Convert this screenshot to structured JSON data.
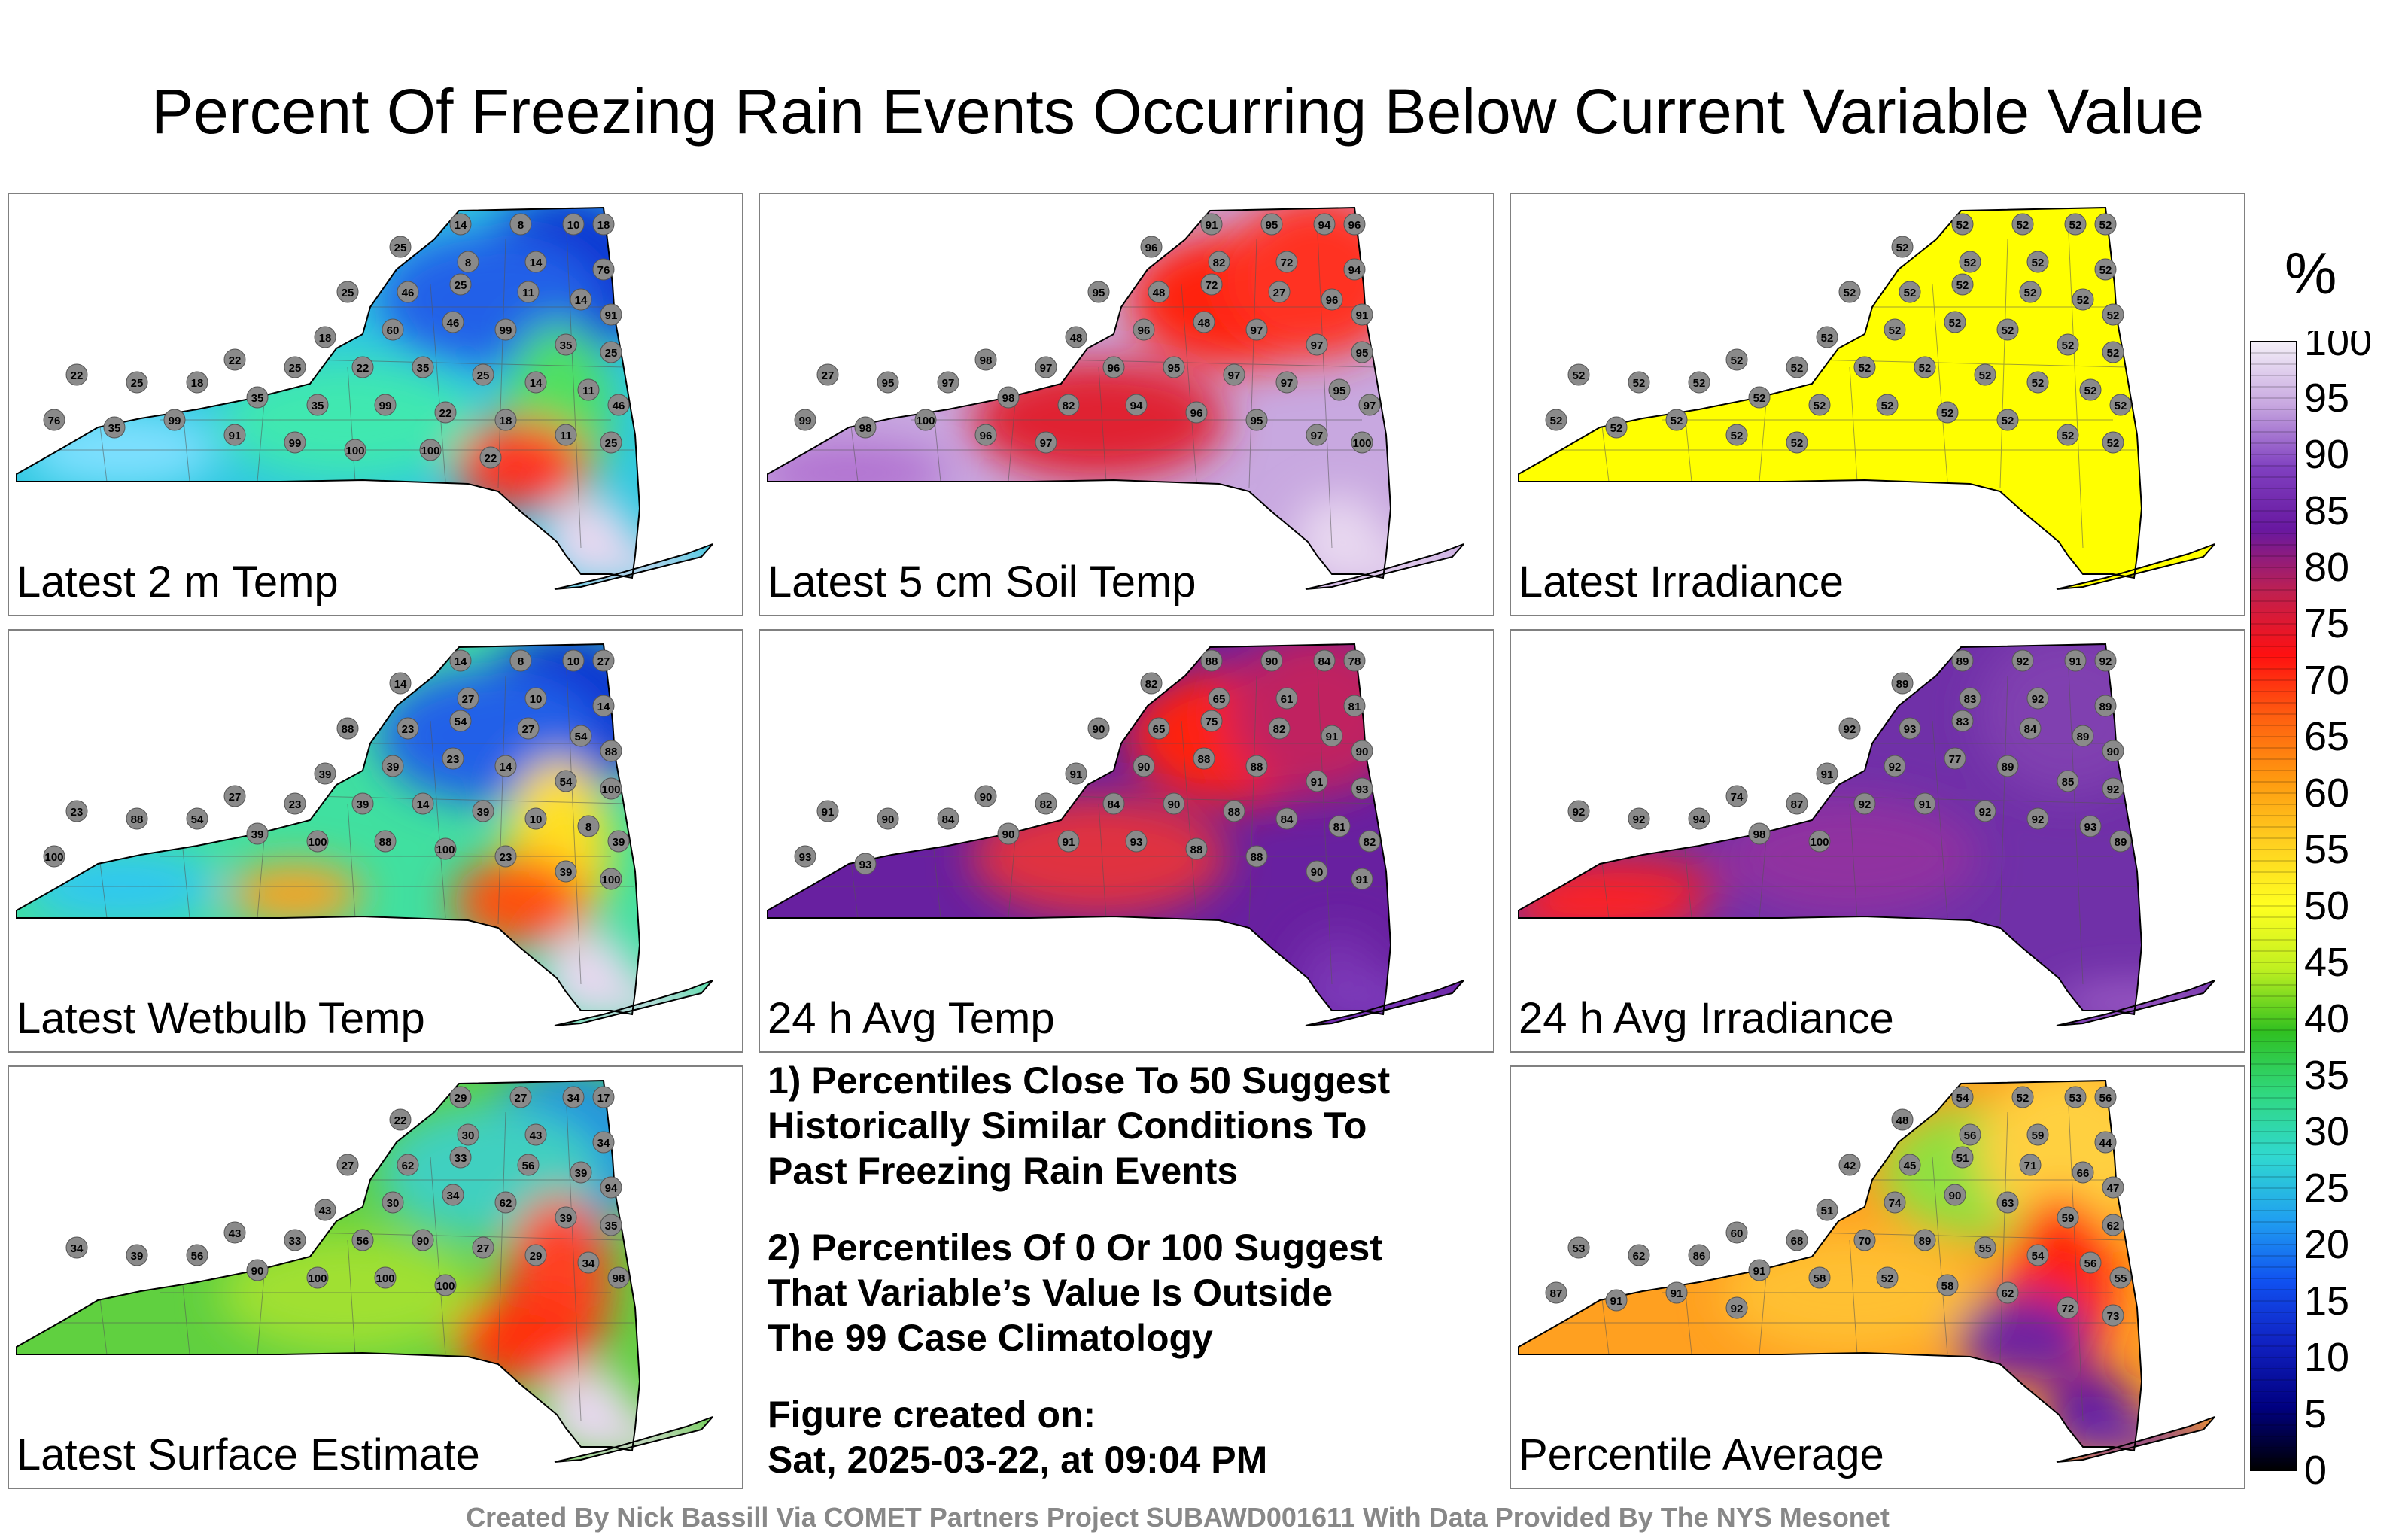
{
  "title": "Percent Of Freezing Rain Events Occurring Below Current Variable Value",
  "panels": [
    {
      "label": "Latest 2 m Temp",
      "base": "#2ec8e0",
      "blobs": [
        {
          "at": "ne",
          "color": "#1030d0"
        },
        {
          "at": "n",
          "color": "#2060e8"
        },
        {
          "at": "ec",
          "color": "#50e060"
        },
        {
          "at": "se",
          "color": "#ff3020"
        },
        {
          "at": "s",
          "color": "#e8d8f0"
        },
        {
          "at": "li",
          "color": "#e8d8f0"
        },
        {
          "at": "w",
          "color": "#80e0ff"
        },
        {
          "at": "c",
          "color": "#40e8b0"
        }
      ],
      "stations": [
        "14",
        "8",
        "10",
        "18",
        "25",
        "8",
        "14",
        "76",
        "25",
        "46",
        "25",
        "11",
        "14",
        "91",
        "18",
        "60",
        "46",
        "99",
        "35",
        "25",
        "22",
        "25",
        "22",
        "35",
        "25",
        "14",
        "11",
        "46",
        "22",
        "25",
        "18",
        "35",
        "35",
        "99",
        "22",
        "18",
        "11",
        "25",
        "76",
        "35",
        "99",
        "91",
        "99",
        "100",
        "100",
        "22"
      ]
    },
    {
      "label": "Latest 5 cm Soil Temp",
      "base": "#c8a8e0",
      "blobs": [
        {
          "at": "n",
          "color": "#ff2010"
        },
        {
          "at": "ne",
          "color": "#ff3020"
        },
        {
          "at": "c",
          "color": "#e02030"
        },
        {
          "at": "sw",
          "color": "#b070d0"
        },
        {
          "at": "s",
          "color": "#e8d8f0"
        },
        {
          "at": "li",
          "color": "#e8d8f0"
        }
      ],
      "stations": [
        "91",
        "95",
        "94",
        "96",
        "96",
        "82",
        "72",
        "94",
        "95",
        "48",
        "72",
        "27",
        "96",
        "91",
        "48",
        "96",
        "48",
        "97",
        "97",
        "95",
        "98",
        "97",
        "96",
        "95",
        "97",
        "97",
        "95",
        "97",
        "27",
        "95",
        "97",
        "98",
        "82",
        "94",
        "96",
        "95",
        "97",
        "100",
        "99",
        "98",
        "100",
        "96",
        "97"
      ]
    },
    {
      "label": "Latest Irradiance",
      "base": "#ffff00",
      "blobs": [],
      "stations": [
        "52",
        "52",
        "52",
        "52",
        "52",
        "52",
        "52",
        "52",
        "52",
        "52",
        "52",
        "52",
        "52",
        "52",
        "52",
        "52",
        "52",
        "52",
        "52",
        "52",
        "52",
        "52",
        "52",
        "52",
        "52",
        "52",
        "52",
        "52",
        "52",
        "52",
        "52",
        "52",
        "52",
        "52",
        "52",
        "52",
        "52",
        "52",
        "52",
        "52",
        "52",
        "52",
        "52"
      ]
    },
    {
      "label": "Latest Wetbulb Temp",
      "base": "#40e0a0",
      "blobs": [
        {
          "at": "ne",
          "color": "#1030d0"
        },
        {
          "at": "n",
          "color": "#2060e8"
        },
        {
          "at": "ec",
          "color": "#ffe020"
        },
        {
          "at": "se",
          "color": "#ff5010"
        },
        {
          "at": "s",
          "color": "#e8d8f0"
        },
        {
          "at": "li",
          "color": "#e8d8f0"
        },
        {
          "at": "w",
          "color": "#30c8f0"
        },
        {
          "at": "sc",
          "color": "#ffa020"
        }
      ],
      "stations": [
        "14",
        "8",
        "10",
        "27",
        "14",
        "27",
        "10",
        "14",
        "88",
        "23",
        "54",
        "27",
        "54",
        "88",
        "39",
        "39",
        "23",
        "14",
        "54",
        "100",
        "27",
        "23",
        "39",
        "14",
        "39",
        "10",
        "8",
        "39",
        "23",
        "88",
        "54",
        "39",
        "100",
        "88",
        "100",
        "23",
        "39",
        "100",
        "100"
      ]
    },
    {
      "label": "24 h Avg Temp",
      "base": "#6820a0",
      "blobs": [
        {
          "at": "n",
          "color": "#ff2010"
        },
        {
          "at": "c",
          "color": "#e03040"
        },
        {
          "at": "ne",
          "color": "#c02060"
        },
        {
          "at": "s",
          "color": "#7830b0"
        },
        {
          "at": "li",
          "color": "#8040c0"
        }
      ],
      "stations": [
        "88",
        "90",
        "84",
        "78",
        "82",
        "65",
        "61",
        "81",
        "90",
        "65",
        "75",
        "82",
        "91",
        "90",
        "91",
        "90",
        "88",
        "88",
        "91",
        "93",
        "90",
        "82",
        "84",
        "90",
        "88",
        "84",
        "81",
        "82",
        "91",
        "90",
        "84",
        "90",
        "91",
        "93",
        "88",
        "88",
        "90",
        "91",
        "93",
        "93"
      ]
    },
    {
      "label": "24 h Avg Irradiance",
      "base": "#7030a8",
      "blobs": [
        {
          "at": "w",
          "color": "#d02040"
        },
        {
          "at": "sw",
          "color": "#ff2020"
        },
        {
          "at": "c",
          "color": "#9030a0"
        },
        {
          "at": "ne",
          "color": "#8040b0"
        },
        {
          "at": "li",
          "color": "#a060c8"
        }
      ],
      "stations": [
        "89",
        "92",
        "91",
        "92",
        "89",
        "83",
        "92",
        "89",
        "92",
        "93",
        "83",
        "84",
        "89",
        "90",
        "91",
        "92",
        "77",
        "89",
        "85",
        "92",
        "74",
        "87",
        "92",
        "91",
        "92",
        "92",
        "93",
        "89",
        "92",
        "92",
        "94",
        "98",
        "100"
      ]
    },
    {
      "label": "Latest Surface Estimate",
      "base": "#60d040",
      "blobs": [
        {
          "at": "ne",
          "color": "#2090e0"
        },
        {
          "at": "n",
          "color": "#40d0c0"
        },
        {
          "at": "ec",
          "color": "#ff4020"
        },
        {
          "at": "se",
          "color": "#ff3010"
        },
        {
          "at": "s",
          "color": "#e8d8f0"
        },
        {
          "at": "li",
          "color": "#e8d8f0"
        },
        {
          "at": "c",
          "color": "#a0e030"
        }
      ],
      "stations": [
        "29",
        "27",
        "34",
        "17",
        "22",
        "30",
        "43",
        "34",
        "27",
        "62",
        "33",
        "56",
        "39",
        "94",
        "43",
        "30",
        "34",
        "62",
        "39",
        "35",
        "43",
        "33",
        "56",
        "90",
        "27",
        "29",
        "34",
        "98",
        "34",
        "39",
        "56",
        "90",
        "100",
        "100",
        "100"
      ]
    },
    {
      "label": "Percentile Average",
      "base": "#ffa020",
      "blobs": [
        {
          "at": "n",
          "color": "#90e040"
        },
        {
          "at": "ne",
          "color": "#ffd040"
        },
        {
          "at": "ec",
          "color": "#ff2010"
        },
        {
          "at": "se",
          "color": "#7020a0"
        },
        {
          "at": "s",
          "color": "#6018a0"
        },
        {
          "at": "li",
          "color": "#7030b0"
        },
        {
          "at": "c",
          "color": "#ffc030"
        }
      ],
      "stations": [
        "54",
        "52",
        "53",
        "56",
        "48",
        "56",
        "59",
        "44",
        "42",
        "45",
        "51",
        "71",
        "66",
        "47",
        "51",
        "74",
        "90",
        "63",
        "59",
        "62",
        "60",
        "68",
        "70",
        "89",
        "55",
        "54",
        "56",
        "55",
        "53",
        "62",
        "86",
        "91",
        "58",
        "52",
        "58",
        "62",
        "72",
        "73",
        "87",
        "91",
        "91",
        "92"
      ]
    }
  ],
  "notes": {
    "note1": [
      "1) Percentiles Close To 50 Suggest",
      "Historically Similar Conditions To",
      "Past Freezing Rain Events"
    ],
    "note2": [
      "2) Percentiles Of 0 Or 100 Suggest",
      "That Variable’s Value Is Outside",
      "The 99 Case Climatology"
    ],
    "created_label": "Figure created on:",
    "created_value": "Sat, 2025-03-22, at 09:04 PM"
  },
  "colorbar": {
    "unit": "%",
    "ticks": [
      "100",
      "95",
      "90",
      "85",
      "80",
      "75",
      "70",
      "65",
      "60",
      "55",
      "50",
      "45",
      "40",
      "35",
      "30",
      "25",
      "20",
      "15",
      "10",
      "5",
      "0"
    ],
    "stops": [
      "#f4f0f8",
      "#c8a8e0",
      "#8040c0",
      "#6818a0",
      "#c02050",
      "#ff1010",
      "#ff6010",
      "#ff9a10",
      "#ffd020",
      "#ffff20",
      "#c0f020",
      "#30c020",
      "#30d880",
      "#30d8d0",
      "#20a0f0",
      "#1050f0",
      "#1020c0",
      "#000080",
      "#000000"
    ]
  },
  "credit": "Created By Nick Bassill Via COMET Partners Project SUBAWD001611 With Data Provided By The NYS Mesonet"
}
